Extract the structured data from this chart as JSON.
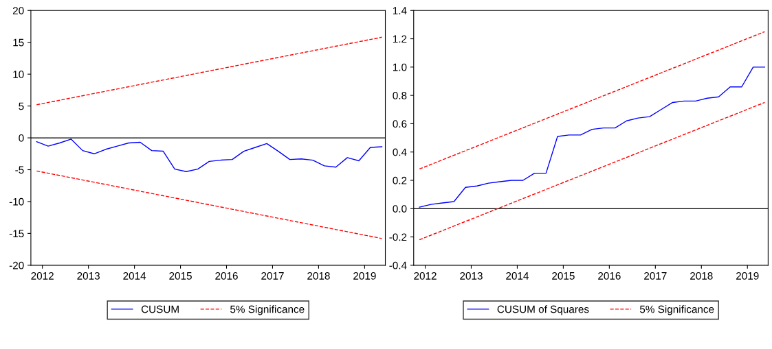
{
  "chart_data": [
    {
      "type": "line",
      "xlim": [
        2011.75,
        2019.45
      ],
      "xticks": [
        {
          "value": 2012,
          "label": "2012"
        },
        {
          "value": 2013,
          "label": "2013"
        },
        {
          "value": 2014,
          "label": "2014"
        },
        {
          "value": 2015,
          "label": "2015"
        },
        {
          "value": 2016,
          "label": "2016"
        },
        {
          "value": 2017,
          "label": "2017"
        },
        {
          "value": 2018,
          "label": "2018"
        },
        {
          "value": 2019,
          "label": "2019"
        }
      ],
      "ylim": [
        -20,
        20
      ],
      "yticks": [
        -20,
        -15,
        -10,
        -5,
        0,
        5,
        10,
        15,
        20
      ],
      "grid": false,
      "legend": "bottom",
      "ref_lines": [
        {
          "axis": "y",
          "value": 0,
          "color": "#000000",
          "line_style": "solid"
        }
      ],
      "series": [
        {
          "name": "CUSUM",
          "color": "#0000ff",
          "line_style": "solid",
          "x": [
            2011.875,
            2012.125,
            2012.375,
            2012.625,
            2012.875,
            2013.125,
            2013.375,
            2013.625,
            2013.875,
            2014.125,
            2014.375,
            2014.625,
            2014.875,
            2015.125,
            2015.375,
            2015.625,
            2015.875,
            2016.125,
            2016.375,
            2016.625,
            2016.875,
            2017.125,
            2017.375,
            2017.625,
            2017.875,
            2018.125,
            2018.375,
            2018.625,
            2018.875,
            2019.125,
            2019.375
          ],
          "values": [
            -0.6,
            -1.3,
            -0.8,
            -0.2,
            -2.0,
            -2.5,
            -1.8,
            -1.3,
            -0.8,
            -0.7,
            -2.0,
            -2.1,
            -4.9,
            -5.3,
            -4.9,
            -3.7,
            -3.5,
            -3.4,
            -2.1,
            -1.5,
            -0.9,
            -2.1,
            -3.4,
            -3.3,
            -3.5,
            -4.4,
            -4.6,
            -3.1,
            -3.6,
            -1.5,
            -1.4
          ]
        },
        {
          "name": "5% Significance",
          "color": "#ff0000",
          "line_style": "dashed",
          "x": [
            2011.875,
            2019.375
          ],
          "values": [
            5.2,
            15.8
          ]
        },
        {
          "color": "#ff0000",
          "line_style": "dashed",
          "x": [
            2011.875,
            2019.375
          ],
          "values": [
            -5.2,
            -15.8
          ]
        }
      ]
    },
    {
      "type": "line",
      "xlim": [
        2011.75,
        2019.45
      ],
      "xticks": [
        {
          "value": 2012,
          "label": "2012"
        },
        {
          "value": 2013,
          "label": "2013"
        },
        {
          "value": 2014,
          "label": "2014"
        },
        {
          "value": 2015,
          "label": "2015"
        },
        {
          "value": 2016,
          "label": "2016"
        },
        {
          "value": 2017,
          "label": "2017"
        },
        {
          "value": 2018,
          "label": "2018"
        },
        {
          "value": 2019,
          "label": "2019"
        }
      ],
      "ylim": [
        -0.4,
        1.4
      ],
      "yticks": [
        {
          "value": -0.4,
          "label": "-0.4"
        },
        {
          "value": -0.2,
          "label": "-0.2"
        },
        {
          "value": 0,
          "label": "0.0"
        },
        {
          "value": 0.2,
          "label": "0.2"
        },
        {
          "value": 0.4,
          "label": "0.4"
        },
        {
          "value": 0.6,
          "label": "0.6"
        },
        {
          "value": 0.8,
          "label": "0.8"
        },
        {
          "value": 1.0,
          "label": "1.0"
        },
        {
          "value": 1.2,
          "label": "1.2"
        },
        {
          "value": 1.4,
          "label": "1.4"
        }
      ],
      "grid": false,
      "legend": "bottom",
      "ref_lines": [
        {
          "axis": "y",
          "value": 0,
          "color": "#000000",
          "line_style": "solid"
        }
      ],
      "series": [
        {
          "name": "CUSUM of Squares",
          "color": "#0000ff",
          "line_style": "solid",
          "x": [
            2011.875,
            2012.125,
            2012.375,
            2012.625,
            2012.875,
            2013.125,
            2013.375,
            2013.625,
            2013.875,
            2014.125,
            2014.375,
            2014.625,
            2014.875,
            2015.125,
            2015.375,
            2015.625,
            2015.875,
            2016.125,
            2016.375,
            2016.625,
            2016.875,
            2017.125,
            2017.375,
            2017.625,
            2017.875,
            2018.125,
            2018.375,
            2018.625,
            2018.875,
            2019.125,
            2019.375
          ],
          "values": [
            0.01,
            0.03,
            0.04,
            0.05,
            0.15,
            0.16,
            0.18,
            0.19,
            0.2,
            0.2,
            0.25,
            0.25,
            0.51,
            0.52,
            0.52,
            0.56,
            0.57,
            0.57,
            0.62,
            0.64,
            0.65,
            0.7,
            0.75,
            0.76,
            0.76,
            0.78,
            0.79,
            0.86,
            0.86,
            1.0,
            1.0
          ]
        },
        {
          "name": "5% Significance",
          "color": "#ff0000",
          "line_style": "dashed",
          "x": [
            2011.875,
            2019.375
          ],
          "values": [
            0.28,
            1.25
          ]
        },
        {
          "color": "#ff0000",
          "line_style": "dashed",
          "x": [
            2011.875,
            2019.375
          ],
          "values": [
            -0.22,
            0.75
          ]
        }
      ]
    }
  ]
}
